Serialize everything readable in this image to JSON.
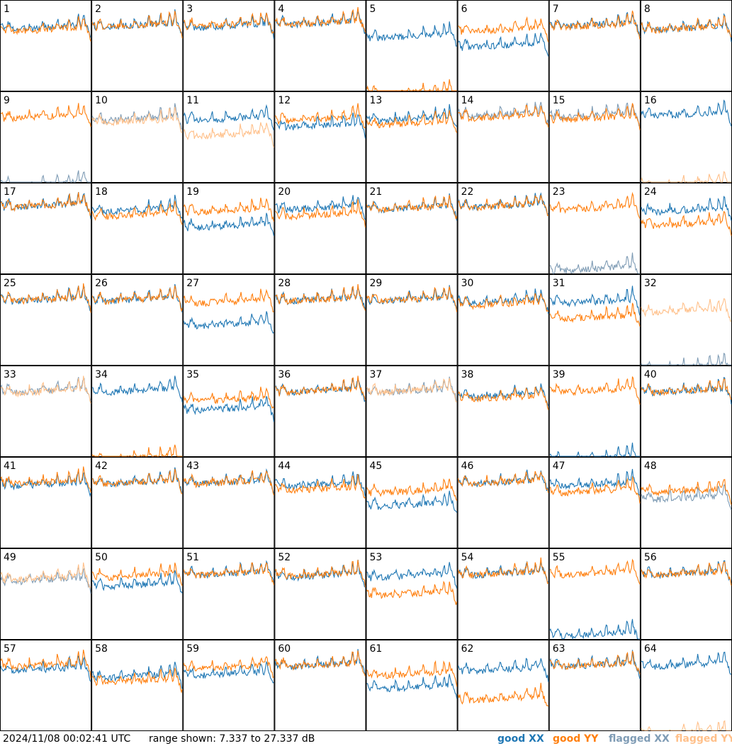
{
  "chart_data": {
    "type": "line",
    "layout": "small-multiples 8x8",
    "panel_labels": [
      "1",
      "2",
      "3",
      "4",
      "5",
      "6",
      "7",
      "8",
      "9",
      "10",
      "11",
      "12",
      "13",
      "14",
      "15",
      "16",
      "17",
      "18",
      "19",
      "20",
      "21",
      "22",
      "23",
      "24",
      "25",
      "26",
      "27",
      "28",
      "29",
      "30",
      "31",
      "32",
      "33",
      "34",
      "35",
      "36",
      "37",
      "38",
      "39",
      "40",
      "41",
      "42",
      "43",
      "44",
      "45",
      "46",
      "47",
      "48",
      "49",
      "50",
      "51",
      "52",
      "53",
      "54",
      "55",
      "56",
      "57",
      "58",
      "59",
      "60",
      "61",
      "62",
      "63",
      "64"
    ],
    "range_db": [
      7.337,
      27.337
    ],
    "y_axis_shown": false,
    "x_axis_shown": false,
    "grid": false,
    "legend_placement": "bottom-right",
    "series": [
      {
        "name": "good XX",
        "color": "#1f77b4"
      },
      {
        "name": "good YY",
        "color": "#ff7f0e"
      },
      {
        "name": "flagged XX",
        "color": "#7f9cb5"
      },
      {
        "name": "flagged YY",
        "color": "#ffc08a"
      }
    ],
    "approx_levels_db": {
      "description_of_values": "approximate plateau level of each trace per panel, read against the 7.337-27.337 dB range",
      "panels": [
        {
          "xx": 22.0,
          "yy": 21.5,
          "xx_state": "good",
          "yy_state": "good"
        },
        {
          "xx": 22.5,
          "yy": 22.5,
          "xx_state": "good",
          "yy_state": "good"
        },
        {
          "xx": 22.3,
          "yy": 22.6,
          "xx_state": "good",
          "yy_state": "good"
        },
        {
          "xx": 23.0,
          "yy": 23.0,
          "xx_state": "good",
          "yy_state": "good"
        },
        {
          "xx": 20.0,
          "yy": 7.5,
          "xx_state": "good",
          "yy_state": "good"
        },
        {
          "xx": 18.0,
          "yy": 21.5,
          "xx_state": "good",
          "yy_state": "good"
        },
        {
          "xx": 22.6,
          "yy": 22.4,
          "xx_state": "good",
          "yy_state": "good"
        },
        {
          "xx": 21.8,
          "yy": 21.8,
          "xx_state": "good",
          "yy_state": "good"
        },
        {
          "xx": 7.5,
          "yy": 22.5,
          "xx_state": "flagged",
          "yy_state": "good"
        },
        {
          "xx": 22.0,
          "yy": 21.5,
          "xx_state": "flagged",
          "yy_state": "flagged"
        },
        {
          "xx": 22.0,
          "yy": 18.5,
          "xx_state": "good",
          "yy_state": "flagged"
        },
        {
          "xx": 20.5,
          "yy": 22.0,
          "xx_state": "good",
          "yy_state": "good"
        },
        {
          "xx": 22.0,
          "yy": 21.0,
          "xx_state": "good",
          "yy_state": "good"
        },
        {
          "xx": 23.0,
          "yy": 22.5,
          "xx_state": "flagged",
          "yy_state": "good"
        },
        {
          "xx": 22.8,
          "yy": 22.2,
          "xx_state": "flagged",
          "yy_state": "good"
        },
        {
          "xx": 23.0,
          "yy": 7.5,
          "xx_state": "good",
          "yy_state": "flagged"
        },
        {
          "xx": 23.0,
          "yy": 23.0,
          "xx_state": "good",
          "yy_state": "good"
        },
        {
          "xx": 22.0,
          "yy": 21.0,
          "xx_state": "good",
          "yy_state": "good"
        },
        {
          "xx": 18.5,
          "yy": 22.0,
          "xx_state": "good",
          "yy_state": "good"
        },
        {
          "xx": 22.5,
          "yy": 21.0,
          "xx_state": "good",
          "yy_state": "good"
        },
        {
          "xx": 22.5,
          "yy": 22.5,
          "xx_state": "good",
          "yy_state": "good"
        },
        {
          "xx": 23.0,
          "yy": 23.0,
          "xx_state": "good",
          "yy_state": "good"
        },
        {
          "xx": 9.0,
          "yy": 22.5,
          "xx_state": "flagged",
          "yy_state": "good"
        },
        {
          "xx": 22.0,
          "yy": 19.0,
          "xx_state": "good",
          "yy_state": "good"
        },
        {
          "xx": 22.5,
          "yy": 22.5,
          "xx_state": "good",
          "yy_state": "good"
        },
        {
          "xx": 22.5,
          "yy": 22.5,
          "xx_state": "good",
          "yy_state": "good"
        },
        {
          "xx": 17.0,
          "yy": 22.0,
          "xx_state": "good",
          "yy_state": "good"
        },
        {
          "xx": 22.5,
          "yy": 22.5,
          "xx_state": "good",
          "yy_state": "good"
        },
        {
          "xx": 22.5,
          "yy": 22.5,
          "xx_state": "good",
          "yy_state": "good"
        },
        {
          "xx": 22.0,
          "yy": 21.5,
          "xx_state": "good",
          "yy_state": "good"
        },
        {
          "xx": 22.0,
          "yy": 18.5,
          "xx_state": "good",
          "yy_state": "good"
        },
        {
          "xx": 7.5,
          "yy": 20.0,
          "xx_state": "flagged",
          "yy_state": "flagged"
        },
        {
          "xx": 22.5,
          "yy": 22.3,
          "xx_state": "flagged",
          "yy_state": "flagged"
        },
        {
          "xx": 22.5,
          "yy": 7.5,
          "xx_state": "good",
          "yy_state": "good"
        },
        {
          "xx": 18.5,
          "yy": 20.5,
          "xx_state": "good",
          "yy_state": "good"
        },
        {
          "xx": 22.5,
          "yy": 22.5,
          "xx_state": "good",
          "yy_state": "good"
        },
        {
          "xx": 22.5,
          "yy": 22.5,
          "xx_state": "flagged",
          "yy_state": "flagged"
        },
        {
          "xx": 21.5,
          "yy": 21.0,
          "xx_state": "good",
          "yy_state": "good"
        },
        {
          "xx": 7.5,
          "yy": 22.5,
          "xx_state": "good",
          "yy_state": "good"
        },
        {
          "xx": 22.5,
          "yy": 22.5,
          "xx_state": "good",
          "yy_state": "good"
        },
        {
          "xx": 22.0,
          "yy": 22.5,
          "xx_state": "good",
          "yy_state": "good"
        },
        {
          "xx": 22.5,
          "yy": 22.5,
          "xx_state": "good",
          "yy_state": "good"
        },
        {
          "xx": 22.5,
          "yy": 22.5,
          "xx_state": "good",
          "yy_state": "good"
        },
        {
          "xx": 22.0,
          "yy": 21.0,
          "xx_state": "good",
          "yy_state": "good"
        },
        {
          "xx": 17.5,
          "yy": 20.5,
          "xx_state": "good",
          "yy_state": "good"
        },
        {
          "xx": 22.5,
          "yy": 22.5,
          "xx_state": "good",
          "yy_state": "good"
        },
        {
          "xx": 22.0,
          "yy": 20.5,
          "xx_state": "good",
          "yy_state": "good"
        },
        {
          "xx": 19.0,
          "yy": 20.5,
          "xx_state": "flagged",
          "yy_state": "good"
        },
        {
          "xx": 21.0,
          "yy": 21.5,
          "xx_state": "flagged",
          "yy_state": "flagged"
        },
        {
          "xx": 20.0,
          "yy": 22.0,
          "xx_state": "good",
          "yy_state": "good"
        },
        {
          "xx": 22.5,
          "yy": 22.5,
          "xx_state": "good",
          "yy_state": "good"
        },
        {
          "xx": 22.0,
          "yy": 22.3,
          "xx_state": "good",
          "yy_state": "good"
        },
        {
          "xx": 22.0,
          "yy": 18.0,
          "xx_state": "good",
          "yy_state": "good"
        },
        {
          "xx": 22.5,
          "yy": 22.5,
          "xx_state": "good",
          "yy_state": "good"
        },
        {
          "xx": 9.0,
          "yy": 22.5,
          "xx_state": "good",
          "yy_state": "good"
        },
        {
          "xx": 22.5,
          "yy": 22.5,
          "xx_state": "good",
          "yy_state": "good"
        },
        {
          "xx": 21.5,
          "yy": 22.5,
          "xx_state": "good",
          "yy_state": "good"
        },
        {
          "xx": 20.0,
          "yy": 19.0,
          "xx_state": "good",
          "yy_state": "good"
        },
        {
          "xx": 20.5,
          "yy": 22.0,
          "xx_state": "good",
          "yy_state": "good"
        },
        {
          "xx": 22.5,
          "yy": 22.5,
          "xx_state": "good",
          "yy_state": "good"
        },
        {
          "xx": 17.5,
          "yy": 20.5,
          "xx_state": "good",
          "yy_state": "good"
        },
        {
          "xx": 21.5,
          "yy": 15.0,
          "xx_state": "good",
          "yy_state": "good"
        },
        {
          "xx": 22.5,
          "yy": 22.5,
          "xx_state": "good",
          "yy_state": "good"
        },
        {
          "xx": 22.5,
          "yy": 7.5,
          "xx_state": "good",
          "yy_state": "flagged"
        }
      ]
    }
  },
  "footer": {
    "timestamp": "2024/11/08 00:02:41 UTC",
    "range_text": "range shown: 7.337 to 27.337 dB",
    "legend": [
      {
        "label": "good XX",
        "color": "#1f77b4"
      },
      {
        "label": "good YY",
        "color": "#ff7f0e"
      },
      {
        "label": "flagged XX",
        "color": "#7f9cb5"
      },
      {
        "label": "flagged YY",
        "color": "#ffc08a"
      }
    ]
  }
}
